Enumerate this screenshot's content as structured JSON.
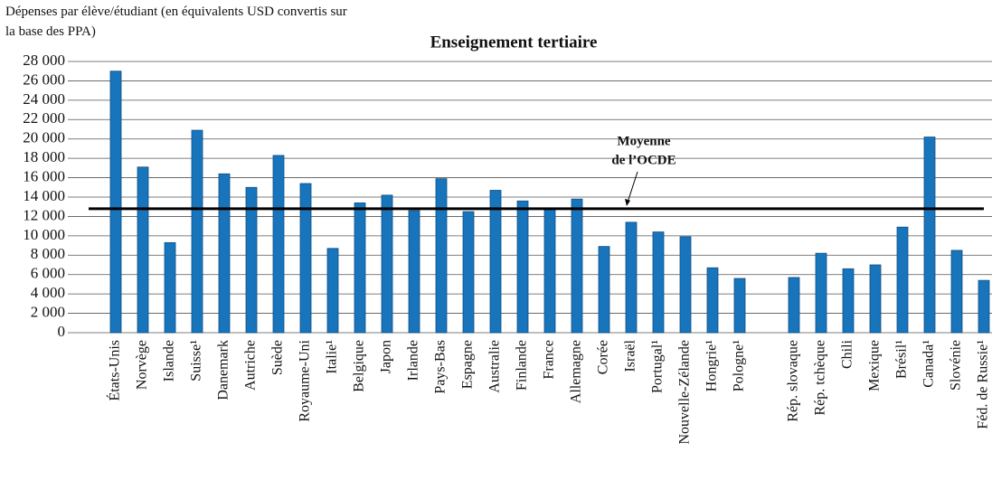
{
  "chart_data": {
    "type": "bar",
    "title": "Enseignement tertiaire",
    "ylabel": "Dépenses par élève/étudiant (en équivalents USD convertis sur la base des PPA)",
    "categories": [
      "États-Unis",
      "Norvège",
      "Islande",
      "Suisse¹",
      "Danemark",
      "Autriche",
      "Suède",
      "Royaume-Uni",
      "Italie¹",
      "Belgique",
      "Japon",
      "Irlande",
      "Pays-Bas",
      "Espagne",
      "Australie",
      "Finlande",
      "France",
      "Allemagne",
      "Corée",
      "Israël",
      "Portugal¹",
      "Nouvelle-Zélande",
      "Hongrie¹",
      "Pologne¹",
      null,
      "Rép. slovaque",
      "Rép. tchèque",
      "Chili",
      "Mexique",
      "Brésil¹",
      "Canada¹",
      "Slovénie",
      "Féd. de Russie¹"
    ],
    "values": [
      27000,
      17100,
      9300,
      20900,
      16400,
      15000,
      18300,
      15400,
      8700,
      13400,
      14200,
      12600,
      15900,
      12500,
      14700,
      13600,
      12800,
      13800,
      8900,
      11400,
      10400,
      9900,
      6700,
      5600,
      null,
      5700,
      8200,
      6600,
      7000,
      10900,
      20200,
      8500,
      5400
    ],
    "color": "#1874bb",
    "mean": 12800,
    "annotation": [
      "Moyenne",
      "de l’OCDE"
    ],
    "ylim": [
      0,
      28000
    ],
    "yticks": [
      0,
      {
        "value": 2000,
        "label": "2 000"
      },
      {
        "value": 4000,
        "label": "4 000"
      },
      {
        "value": 6000,
        "label": "6 000"
      },
      {
        "value": 8000,
        "label": "8 000"
      },
      {
        "value": 10000,
        "label": "10 000"
      },
      {
        "value": 12000,
        "label": "12 000"
      },
      {
        "value": 14000,
        "label": "14 000"
      },
      {
        "value": 16000,
        "label": "16 000"
      },
      {
        "value": 18000,
        "label": "18 000"
      },
      {
        "value": 20000,
        "label": "20 000"
      },
      {
        "value": 22000,
        "label": "22 000"
      },
      {
        "value": 24000,
        "label": "24 000"
      },
      {
        "value": 26000,
        "label": "26 000"
      },
      {
        "value": 28000,
        "label": "28 000"
      }
    ],
    "grid": true
  }
}
